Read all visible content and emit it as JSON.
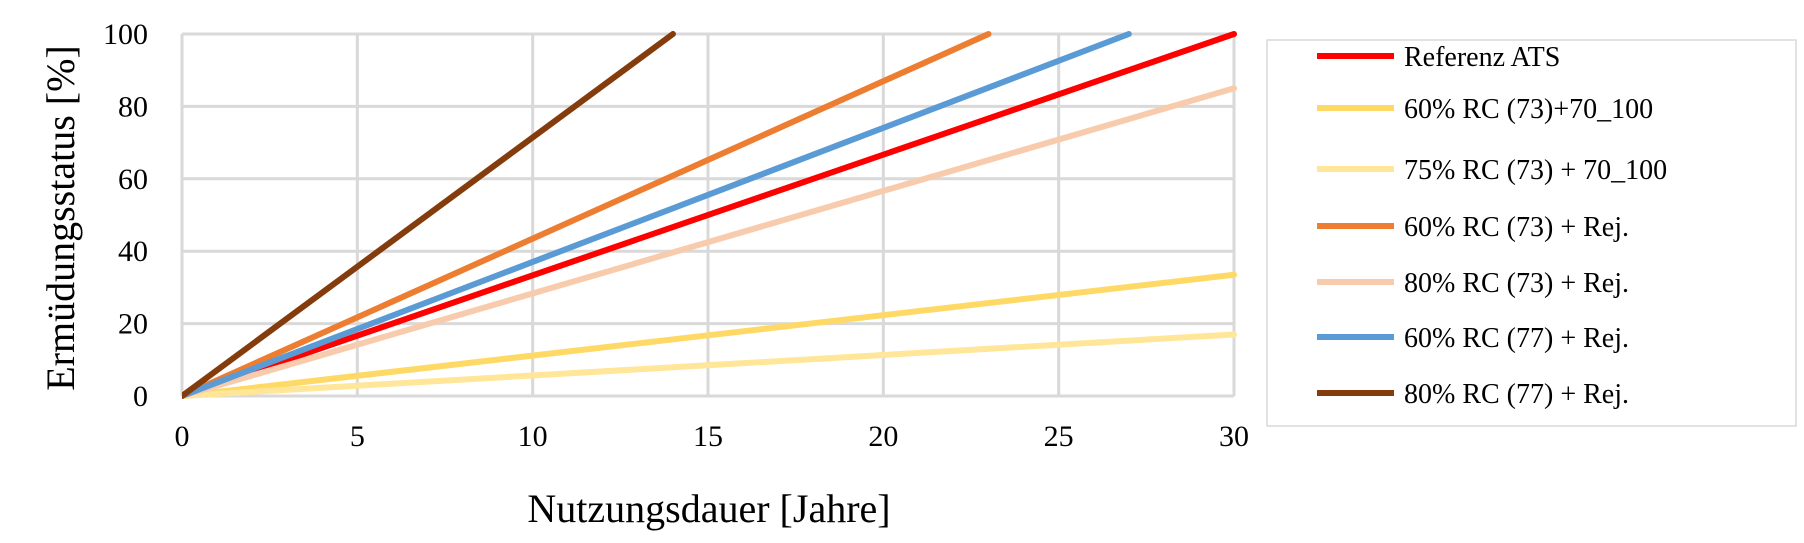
{
  "chart_data": {
    "type": "line",
    "xlabel": "Nutzungsdauer [Jahre]",
    "ylabel": "Ermüdungsstatus [%]",
    "xlim": [
      0,
      30
    ],
    "ylim": [
      0,
      100
    ],
    "xticks": [
      "0",
      "5",
      "10",
      "15",
      "20",
      "25",
      "30"
    ],
    "yticks": [
      "0",
      "20",
      "40",
      "60",
      "80",
      "100"
    ],
    "grid": true,
    "legend_position": "right",
    "series": [
      {
        "name": "Referenz ATS",
        "color": "#FF0000",
        "x": [
          0,
          30
        ],
        "y": [
          0,
          100
        ]
      },
      {
        "name": "60% RC (73)+70_100",
        "color": "#FFD966",
        "x": [
          0,
          30
        ],
        "y": [
          0,
          33.5
        ]
      },
      {
        "name": "75% RC (73) + 70_100",
        "color": "#FFE699",
        "x": [
          0,
          30
        ],
        "y": [
          0,
          17
        ]
      },
      {
        "name": "60% RC (73) + Rej.",
        "color": "#ED7D31",
        "x": [
          0,
          23
        ],
        "y": [
          0,
          100
        ]
      },
      {
        "name": "80% RC (73) + Rej.",
        "color": "#F8CBAD",
        "x": [
          0,
          30
        ],
        "y": [
          0,
          85
        ]
      },
      {
        "name": "60% RC (77) + Rej.",
        "color": "#5B9BD5",
        "x": [
          0,
          27
        ],
        "y": [
          0,
          100
        ]
      },
      {
        "name": " 80% RC (77) + Rej.",
        "color": "#843C0C",
        "x": [
          0,
          14
        ],
        "y": [
          0,
          100
        ]
      }
    ]
  }
}
